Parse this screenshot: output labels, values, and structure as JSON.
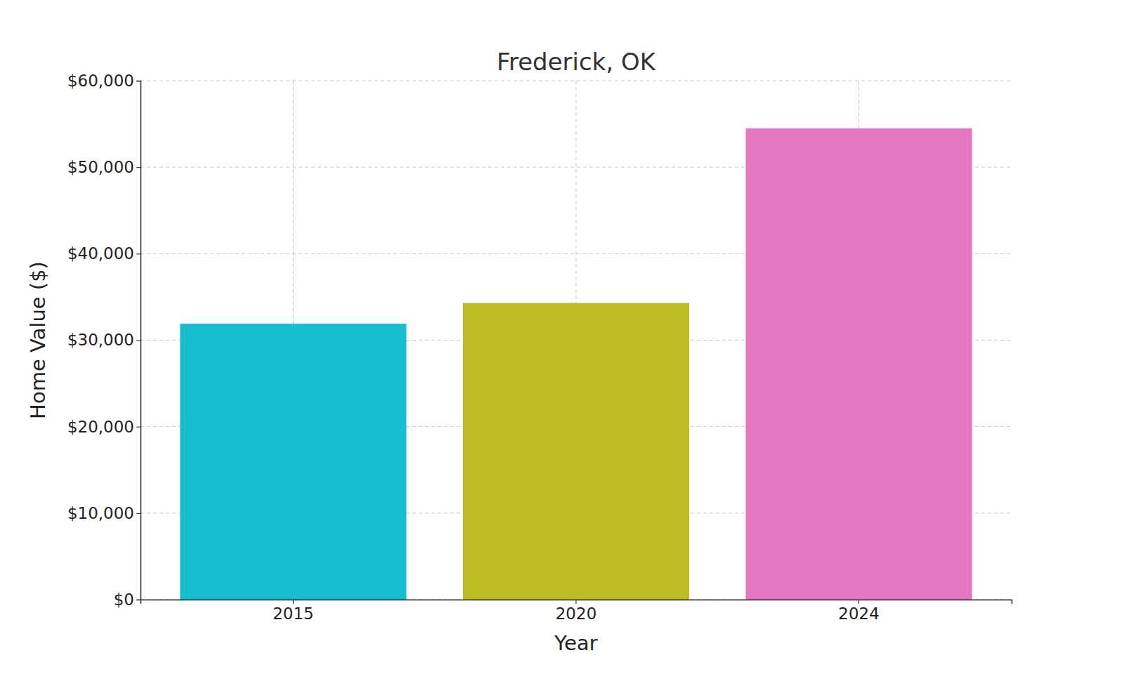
{
  "chart_data": {
    "type": "bar",
    "title": "Frederick, OK",
    "x_label": "Year",
    "y_label": "Home Value ($)",
    "categories": [
      "2015",
      "2020",
      "2024"
    ],
    "values": [
      31900,
      34300,
      54500
    ],
    "colors": [
      "#17becf",
      "#bcbd22",
      "#e377c2"
    ],
    "ylim": [
      0,
      60000
    ],
    "yticks": [
      {
        "value": 0,
        "label": "$0"
      },
      {
        "value": 10000,
        "label": "$10,000"
      },
      {
        "value": 20000,
        "label": "$20,000"
      },
      {
        "value": 30000,
        "label": "$30,000"
      },
      {
        "value": 40000,
        "label": "$40,000"
      },
      {
        "value": 50000,
        "label": "$50,000"
      },
      {
        "value": 60000,
        "label": "$60,000"
      }
    ],
    "grid": true
  }
}
